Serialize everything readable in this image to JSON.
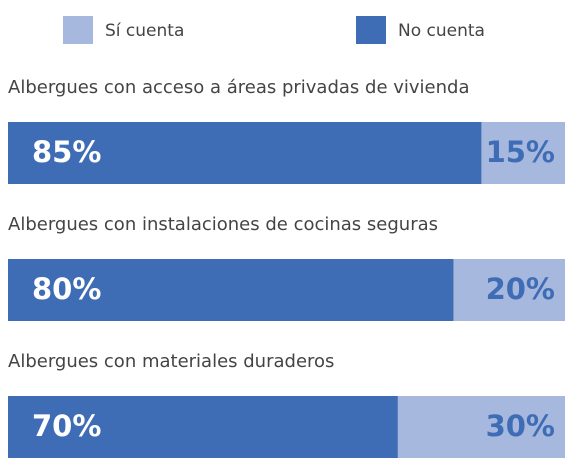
{
  "chart_data": {
    "type": "bar",
    "orientation": "horizontal",
    "stacked": true,
    "categories": [
      "Albergues con acceso a áreas privadas de vivienda",
      "Albergues con instalaciones de cocinas seguras",
      "Albergues con materiales duraderos"
    ],
    "series": [
      {
        "name": "Sí cuenta",
        "color": "#a6b8de",
        "values": [
          15,
          20,
          30
        ],
        "value_labels": [
          "15%",
          "20%",
          "30%"
        ]
      },
      {
        "name": "No cuenta",
        "color": "#3f6db5",
        "values": [
          85,
          80,
          70
        ],
        "value_labels": [
          "85%",
          "80%",
          "70%"
        ]
      }
    ]
  }
}
